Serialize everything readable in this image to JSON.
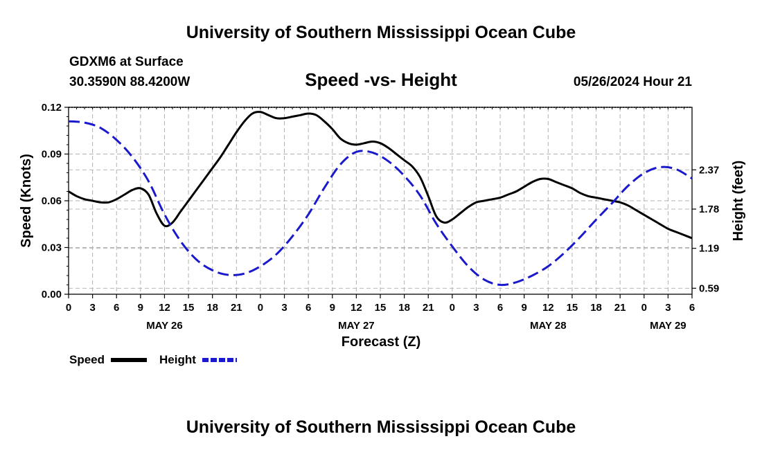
{
  "page": {
    "title_top": "University of Southern Mississippi Ocean Cube",
    "title_bottom": "University of Southern Mississippi Ocean Cube",
    "station": "GDXM6 at Surface",
    "coords": "30.3590N  88.4200W",
    "subtitle": "Speed -vs- Height",
    "run_time": "05/26/2024 Hour 21"
  },
  "colors": {
    "speed": "#000000",
    "height": "#1a1acc",
    "grid": "#b0b0b0"
  },
  "chart_data": {
    "type": "line",
    "title": "Speed -vs- Height",
    "xlabel": "Forecast (Z)",
    "ylabel": "Speed (Knots)",
    "ylabel_right": "Height (feet)",
    "x_range": [
      0,
      78
    ],
    "x_ticks": [
      "0",
      "3",
      "6",
      "9",
      "12",
      "15",
      "18",
      "21",
      "0",
      "3",
      "6",
      "9",
      "12",
      "15",
      "18",
      "21",
      "0",
      "3",
      "6",
      "9",
      "12",
      "15",
      "18",
      "21",
      "0",
      "3",
      "6"
    ],
    "date_labels": [
      {
        "label": "MAY 26",
        "hour": 12
      },
      {
        "label": "MAY 27",
        "hour": 36
      },
      {
        "label": "MAY 28",
        "hour": 60
      },
      {
        "label": "MAY 29",
        "hour": 75
      }
    ],
    "ylim": [
      0,
      0.12
    ],
    "y_ticks": [
      "0.00",
      "0.03",
      "0.06",
      "0.09",
      "0.12"
    ],
    "ylim_right": [
      0.5,
      3.31
    ],
    "y_ticks_right": [
      "0.59",
      "1.19",
      "1.78",
      "2.37"
    ],
    "series": [
      {
        "name": "Speed",
        "axis": "left",
        "style": "solid",
        "x": [
          0,
          1,
          2,
          3,
          4,
          5,
          6,
          7,
          8,
          9,
          10,
          11,
          12,
          13,
          14,
          15,
          16,
          17,
          18,
          19,
          20,
          21,
          22,
          23,
          24,
          25,
          26,
          27,
          28,
          29,
          30,
          31,
          32,
          33,
          34,
          35,
          36,
          37,
          38,
          39,
          40,
          41,
          42,
          43,
          44,
          45,
          46,
          47,
          48,
          49,
          50,
          51,
          52,
          53,
          54,
          55,
          56,
          57,
          58,
          59,
          60,
          61,
          62,
          63,
          64,
          65,
          66,
          67,
          68,
          69,
          70,
          71,
          72,
          73,
          74,
          75,
          76,
          77,
          78
        ],
        "values": [
          0.066,
          0.063,
          0.061,
          0.06,
          0.059,
          0.059,
          0.061,
          0.064,
          0.067,
          0.068,
          0.064,
          0.052,
          0.044,
          0.046,
          0.053,
          0.06,
          0.067,
          0.074,
          0.081,
          0.088,
          0.096,
          0.104,
          0.111,
          0.116,
          0.117,
          0.115,
          0.113,
          0.113,
          0.114,
          0.115,
          0.116,
          0.115,
          0.111,
          0.106,
          0.1,
          0.097,
          0.096,
          0.097,
          0.098,
          0.097,
          0.094,
          0.09,
          0.086,
          0.082,
          0.075,
          0.063,
          0.05,
          0.046,
          0.048,
          0.052,
          0.056,
          0.059,
          0.06,
          0.061,
          0.062,
          0.064,
          0.066,
          0.069,
          0.072,
          0.074,
          0.074,
          0.072,
          0.07,
          0.068,
          0.065,
          0.063,
          0.062,
          0.061,
          0.06,
          0.059,
          0.057,
          0.054,
          0.051,
          0.048,
          0.045,
          0.042,
          0.04,
          0.038,
          0.036
        ]
      },
      {
        "name": "Height",
        "axis": "right",
        "style": "dashed",
        "x": [
          0,
          2,
          4,
          6,
          8,
          10,
          12,
          14,
          16,
          18,
          20,
          22,
          24,
          26,
          28,
          30,
          32,
          34,
          36,
          38,
          40,
          42,
          44,
          46,
          48,
          50,
          52,
          54,
          56,
          58,
          60,
          62,
          64,
          66,
          68,
          70,
          72,
          74,
          76,
          78
        ],
        "values": [
          3.1,
          3.08,
          3.0,
          2.82,
          2.56,
          2.2,
          1.7,
          1.3,
          1.02,
          0.86,
          0.79,
          0.81,
          0.92,
          1.1,
          1.37,
          1.7,
          2.1,
          2.45,
          2.64,
          2.63,
          2.5,
          2.28,
          1.98,
          1.56,
          1.22,
          0.92,
          0.72,
          0.64,
          0.68,
          0.78,
          0.92,
          1.12,
          1.36,
          1.62,
          1.87,
          2.13,
          2.32,
          2.41,
          2.38,
          2.24
        ]
      }
    ],
    "legend": [
      {
        "label": "Speed",
        "color": "#000000",
        "style": "solid"
      },
      {
        "label": "Height",
        "color": "#1a1acc",
        "style": "dashed"
      }
    ]
  }
}
